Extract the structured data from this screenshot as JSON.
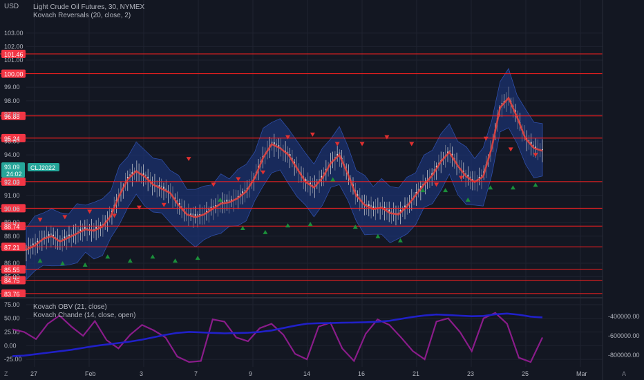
{
  "header": {
    "currency": "USD",
    "title": "Light Crude Oil Futures, 30, NYMEX",
    "indicator": "Kovach Reversals (20, close, 2)"
  },
  "lower_pane": {
    "indicator1": "Kovach OBV (21, close)",
    "indicator2": "Kovach Chande (14, close, open)"
  },
  "bottom_left_icon": "Z",
  "bottom_right_icon": "A",
  "price_tag": {
    "price": "93.09",
    "countdown": "24:02",
    "symbol": "CLJ2022"
  },
  "colors": {
    "background": "#131722",
    "level_line": "#ff1f1f",
    "band_fill": "#1e3a8a",
    "basis": "#e0433f",
    "up_arrow": "#1b8f3a",
    "down_arrow": "#e03030",
    "obv": "#2020c8",
    "chande": "#8a1c8a",
    "price_tag": "#26a69a"
  },
  "chart_data": [
    {
      "type": "line",
      "pane": "price",
      "y_axis_labels": [
        "103.00",
        "102.00",
        "101.00",
        "99.00",
        "98.00",
        "97.00",
        "95.00",
        "94.00",
        "92.00",
        "91.00",
        "90.00",
        "89.00",
        "88.00",
        "86.00",
        "85.00"
      ],
      "ylim": [
        83.5,
        103.4
      ],
      "x_tick_labels": [
        "27",
        "Feb",
        "3",
        "7",
        "9",
        "14",
        "16",
        "21",
        "23",
        "25",
        "Mar"
      ],
      "levels": [
        "101.46",
        "100.00",
        "96.88",
        "95.24",
        "92.03",
        "90.06",
        "88.74",
        "87.21",
        "85.55",
        "84.75",
        "83.76"
      ],
      "series": [
        {
          "values": [
            87.0,
            87.3,
            87.8,
            88.0,
            87.6,
            87.9,
            88.2,
            88.5,
            88.4,
            88.7,
            89.5,
            91.0,
            92.2,
            92.8,
            92.4,
            91.8,
            91.5,
            91.2,
            90.3,
            89.6,
            89.4,
            89.6,
            90.0,
            90.4,
            90.5,
            90.8,
            91.3,
            92.3,
            93.8,
            94.8,
            94.5,
            94.0,
            93.0,
            92.0,
            91.6,
            92.3,
            93.4,
            94.0,
            92.6,
            91.0,
            90.3,
            90.0,
            90.1,
            89.7,
            89.6,
            90.2,
            91.0,
            91.8,
            92.5,
            93.5,
            94.2,
            93.2,
            92.4,
            92.0,
            92.4,
            94.5,
            97.5,
            98.2,
            96.8,
            95.2,
            94.5,
            94.3
          ]
        }
      ],
      "down_arrow_prices": [
        89.2,
        89.4,
        89.8,
        89.5,
        90.1,
        90.3,
        93.7,
        91.8,
        92.2,
        92.7,
        95.3,
        95.5,
        94.8,
        94.8,
        95.3,
        94.8,
        91.8,
        92.3,
        95.2,
        94.4,
        94.0
      ],
      "up_arrow_prices": [
        86.2,
        86.0,
        85.9,
        86.5,
        86.2,
        86.5,
        86.2,
        86.4,
        90.7,
        88.6,
        88.3,
        88.8,
        88.9,
        92.2,
        88.7,
        88.0,
        87.7,
        91.4,
        91.4,
        90.7,
        91.6,
        91.6,
        91.8
      ]
    },
    {
      "type": "line",
      "pane": "oscillator",
      "left_axis_labels": [
        "75.00",
        "50.00",
        "25.00",
        "0.00",
        "-25.00"
      ],
      "right_axis_labels": [
        "-400000.00",
        "-600000.00",
        "-800000.00"
      ],
      "ylim_left": [
        -35,
        80
      ],
      "ylim_right": [
        -900000,
        -250000
      ],
      "series": [
        {
          "name": "Kovach OBV (21, close)",
          "values": [
            -810000,
            -805000,
            -790000,
            -775000,
            -760000,
            -745000,
            -725000,
            -705000,
            -690000,
            -675000,
            -660000,
            -640000,
            -615000,
            -590000,
            -570000,
            -560000,
            -565000,
            -570000,
            -575000,
            -572000,
            -568000,
            -560000,
            -545000,
            -520000,
            -495000,
            -475000,
            -470000,
            -468000,
            -465000,
            -463000,
            -460000,
            -455000,
            -445000,
            -425000,
            -405000,
            -390000,
            -380000,
            -385000,
            -392000,
            -398000,
            -395000,
            -378000,
            -370000,
            -382000,
            -402000,
            -410000
          ]
        },
        {
          "name": "Kovach Chande (14, close, open)",
          "values": [
            30,
            25,
            12,
            40,
            55,
            35,
            18,
            45,
            10,
            -5,
            20,
            38,
            28,
            15,
            -20,
            -30,
            -28,
            48,
            44,
            15,
            8,
            32,
            40,
            20,
            -15,
            -25,
            35,
            42,
            -5,
            -28,
            22,
            48,
            38,
            15,
            -10,
            -25,
            44,
            50,
            25,
            -10,
            50,
            60,
            40,
            -22,
            -30,
            15
          ]
        }
      ]
    }
  ]
}
